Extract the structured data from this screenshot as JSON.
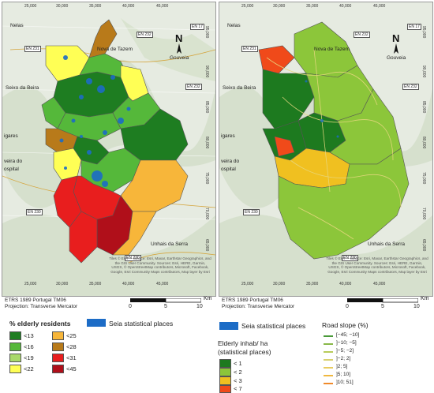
{
  "colors": {
    "bg_terrain": "#e6ebe1",
    "forest": "#cfdcc4",
    "lc_1": "#1e7d21",
    "lc_2": "#55b83a",
    "lc_3": "#a9d96a",
    "lc_4": "#ffff55",
    "lc_5": "#f7b63a",
    "lc_6": "#b87a1a",
    "lc_7": "#e81e1e",
    "lc_8": "#b00f1a",
    "places": "#1c6cc6",
    "rc_1": "#1d7a1f",
    "rc_2": "#8cc63a",
    "rc_3": "#f0c020",
    "rc_4": "#f04a1a"
  },
  "axis_ticks": {
    "x": [
      "25,000",
      "30,000",
      "35,000",
      "40,000",
      "45,000"
    ],
    "y_left": [
      "95,000",
      "90,000",
      "85,000",
      "80,000",
      "75,000",
      "70,000",
      "65,000"
    ],
    "y_right": [
      "95,000",
      "90,000",
      "85,000",
      "80,000",
      "75,000",
      "70,000",
      "65,000"
    ]
  },
  "place_names": {
    "nelas": "Nelas",
    "nova_tazem": "Nova de Tazem",
    "gouveia": "Gouveia",
    "seixo": "Seixo da Beira",
    "gares": "igares",
    "oliveira": "veira do",
    "hospital": "ospital",
    "unhais": "Unhais da Serra"
  },
  "roads": {
    "en17": "EN 17",
    "en231": "EN 231",
    "en232a": "EN 232",
    "en232b": "EN 232",
    "en230a": "EN 230",
    "en230b": "EN 230",
    "en231b": "EN 231"
  },
  "north_label": "N",
  "attribution": "Tiles © Esri — Source: Esri, Maxar, Earthstar Geographics, and the GIS User Community. Sources: Esri, HERE, Garmin, USGS, © OpenStreetMap contributors, Microsoft, Facebook, Google, Esri Community Maps contributors, Map layer by Esri",
  "crs_line1": "ETRS 1989 Portugal TM06",
  "crs_line2": "Projection: Transverse Mercator",
  "scale": {
    "labels": [
      "0",
      "5",
      "10"
    ],
    "unit": "Km"
  },
  "legend_left": {
    "title": "% elderly residents",
    "items": [
      "<13",
      "<16",
      "<19",
      "<22",
      "<25",
      "<28",
      "<31",
      "<45"
    ]
  },
  "legend_places": {
    "label": "Seia statistical places"
  },
  "legend_right": {
    "title_line1": "Elderly inhab/ ha",
    "title_line2": "(statistical places)",
    "items": [
      "< 1",
      "< 2",
      "< 3",
      "< 7"
    ]
  },
  "legend_slope": {
    "title": "Road slope (%)",
    "items": [
      "[−45; −10]",
      "]−10; −5]",
      "]−5; −2]",
      "]−2; 2]",
      "]2; 5]",
      "]5; 10]",
      "]10; 51]"
    ],
    "colors": [
      "#4a9a3a",
      "#88b848",
      "#b8cc5a",
      "#d8d070",
      "#e8cc60",
      "#f0b840",
      "#f08a2a"
    ]
  }
}
